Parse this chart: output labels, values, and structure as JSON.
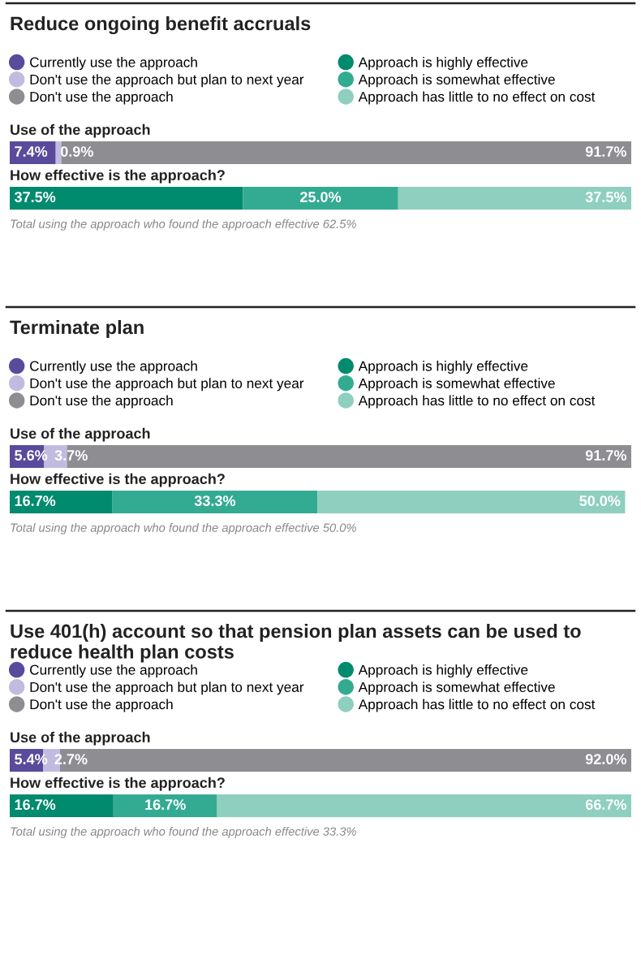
{
  "chart_data": [
    {
      "type": "bar",
      "orientation": "horizontal",
      "stacked": true,
      "legend": "top",
      "title": "Reduce ongoing benefit accruals",
      "categories": [
        "Use of the approach",
        "How effective is the approach?"
      ],
      "series": [
        {
          "name": "Currently use the approach",
          "color": "#5a4a9c",
          "values": [
            7.4,
            null
          ],
          "value_labels": [
            "7.4%",
            null
          ]
        },
        {
          "name": "Don't use the approach but plan to next year",
          "color": "#c2bbe0",
          "values": [
            0.9,
            null
          ],
          "value_labels": [
            "0.9%",
            null
          ]
        },
        {
          "name": "Don't use the approach",
          "color": "#8e8d92",
          "values": [
            91.7,
            null
          ],
          "value_labels": [
            "91.7%",
            null
          ]
        },
        {
          "name": "Approach is highly effective",
          "color": "#008a6e",
          "values": [
            null,
            37.5
          ],
          "value_labels": [
            null,
            "37.5%"
          ]
        },
        {
          "name": "Approach is somewhat effective",
          "color": "#33ab92",
          "values": [
            null,
            25.0
          ],
          "value_labels": [
            null,
            "25.0%"
          ]
        },
        {
          "name": "Approach has little to no effect on cost",
          "color": "#8ecfbf",
          "values": [
            null,
            37.5
          ],
          "value_labels": [
            null,
            "37.5%"
          ]
        }
      ],
      "annotations": [
        "Total using the approach who found the approach effective 62.5%"
      ]
    },
    {
      "type": "bar",
      "orientation": "horizontal",
      "stacked": true,
      "legend": "top",
      "title": "Terminate plan",
      "categories": [
        "Use of the approach",
        "How effective is the approach?"
      ],
      "series": [
        {
          "name": "Currently use the approach",
          "color": "#5a4a9c",
          "values": [
            5.6,
            null
          ],
          "value_labels": [
            "5.6%",
            null
          ]
        },
        {
          "name": "Don't use the approach but plan to next year",
          "color": "#c2bbe0",
          "values": [
            3.7,
            null
          ],
          "value_labels": [
            "3.7%",
            null
          ]
        },
        {
          "name": "Don't use the approach",
          "color": "#8e8d92",
          "values": [
            91.7,
            null
          ],
          "value_labels": [
            "91.7%",
            null
          ]
        },
        {
          "name": "Approach is highly effective",
          "color": "#008a6e",
          "values": [
            null,
            16.7
          ],
          "value_labels": [
            null,
            "16.7%"
          ]
        },
        {
          "name": "Approach is somewhat effective",
          "color": "#33ab92",
          "values": [
            null,
            33.3
          ],
          "value_labels": [
            null,
            "33.3%"
          ]
        },
        {
          "name": "Approach has little to no effect on cost",
          "color": "#8ecfbf",
          "values": [
            null,
            50.0
          ],
          "value_labels": [
            null,
            "50.0%"
          ]
        }
      ],
      "annotations": [
        "Total using the approach who found the approach effective 50.0%"
      ]
    },
    {
      "type": "bar",
      "orientation": "horizontal",
      "stacked": true,
      "legend": "top",
      "title": "Use 401(h) account so that pension plan assets can be used to reduce health plan costs",
      "categories": [
        "Use of the approach",
        "How effective is the approach?"
      ],
      "series": [
        {
          "name": "Currently use the approach",
          "color": "#5a4a9c",
          "values": [
            5.4,
            null
          ],
          "value_labels": [
            "5.4%",
            null
          ]
        },
        {
          "name": "Don't use the approach but plan to next year",
          "color": "#c2bbe0",
          "values": [
            2.7,
            null
          ],
          "value_labels": [
            "2.7%",
            null
          ]
        },
        {
          "name": "Don't use the approach",
          "color": "#8e8d92",
          "values": [
            92.0,
            null
          ],
          "value_labels": [
            "92.0%",
            null
          ]
        },
        {
          "name": "Approach is highly effective",
          "color": "#008a6e",
          "values": [
            null,
            16.7
          ],
          "value_labels": [
            null,
            "16.7%"
          ]
        },
        {
          "name": "Approach is somewhat effective",
          "color": "#33ab92",
          "values": [
            null,
            16.7
          ],
          "value_labels": [
            null,
            "16.7%"
          ]
        },
        {
          "name": "Approach has little to no effect on cost",
          "color": "#8ecfbf",
          "values": [
            null,
            66.7
          ],
          "value_labels": [
            null,
            "66.7%"
          ]
        }
      ],
      "annotations": [
        "Total using the approach who found the approach effective 33.3%"
      ]
    }
  ]
}
